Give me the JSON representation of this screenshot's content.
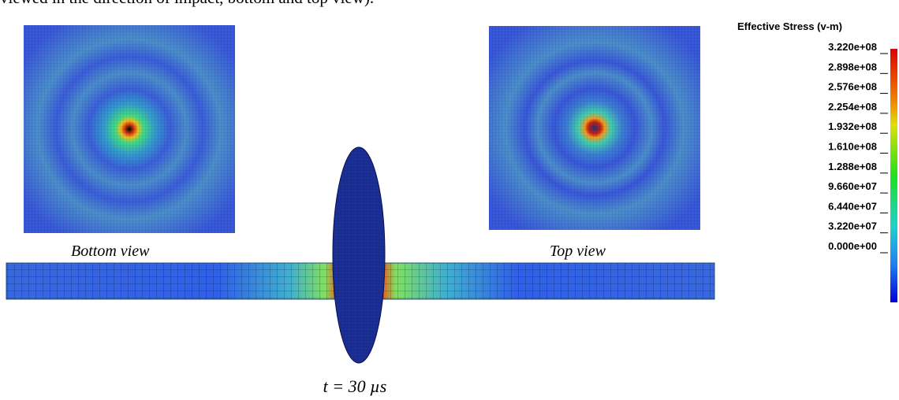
{
  "caption": "viewed in the direction of impact, bottom and top view).",
  "labels": {
    "bottom": "Bottom view",
    "top": "Top view",
    "time": "t = 30 µs"
  },
  "legend": {
    "title": "Effective Stress (v-m)",
    "values": [
      "3.220e+08",
      "2.898e+08",
      "2.576e+08",
      "2.254e+08",
      "1.932e+08",
      "1.610e+08",
      "1.288e+08",
      "9.660e+07",
      "6.440e+07",
      "3.220e+07",
      "0.000e+00"
    ]
  }
}
